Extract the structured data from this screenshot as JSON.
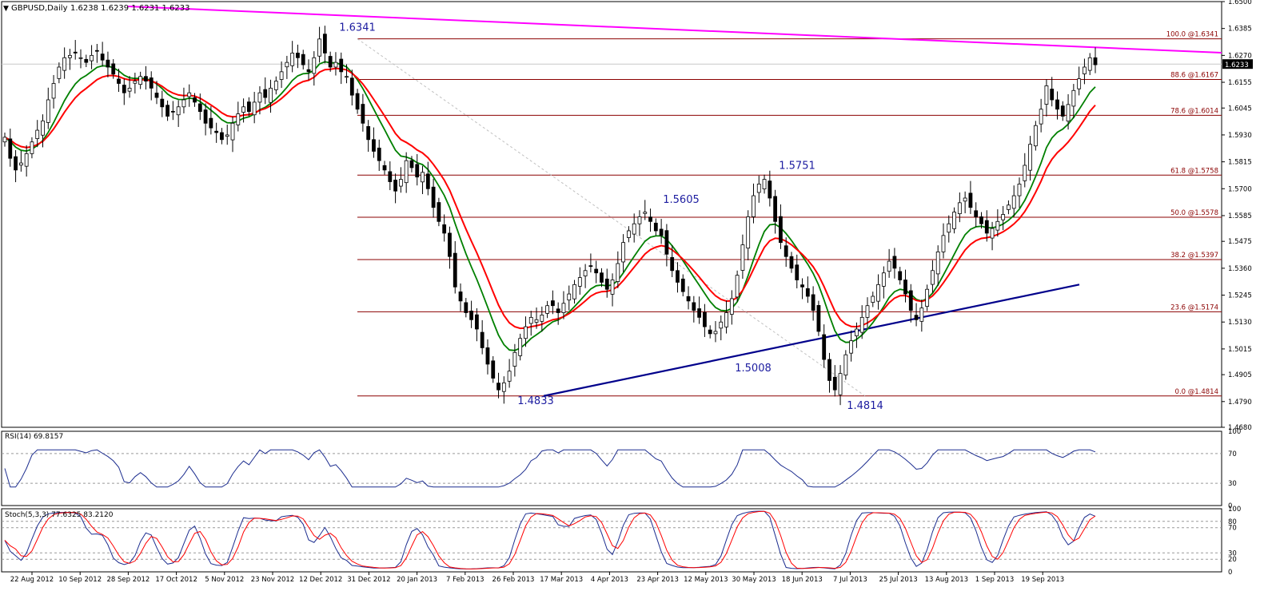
{
  "chart_data": {
    "type": "candlestick",
    "symbol": "GBPUSD,Daily",
    "ohlc_values": "1.6238 1.6239 1.6231 1.6233",
    "current_price": "1.6233",
    "price_axis": {
      "ylim": [
        1.468,
        1.65
      ],
      "ticks": [
        "1.6500",
        "1.6385",
        "1.6270",
        "1.6155",
        "1.6045",
        "1.5930",
        "1.5815",
        "1.5700",
        "1.5585",
        "1.5475",
        "1.5360",
        "1.5245",
        "1.5130",
        "1.5015",
        "1.4905",
        "1.4790",
        "1.4680"
      ]
    },
    "date_axis": [
      "22 Aug 2012",
      "10 Sep 2012",
      "28 Sep 2012",
      "17 Oct 2012",
      "5 Nov 2012",
      "23 Nov 2012",
      "12 Dec 2012",
      "31 Dec 2012",
      "20 Jan 2013",
      "7 Feb 2013",
      "26 Feb 2013",
      "17 Mar 2013",
      "4 Apr 2013",
      "23 Apr 2013",
      "12 May 2013",
      "30 May 2013",
      "18 Jun 2013",
      "7 Jul 2013",
      "25 Jul 2013",
      "13 Aug 2013",
      "1 Sep 2013",
      "19 Sep 2013"
    ],
    "fibonacci": [
      {
        "label": "100.0 @1.6341",
        "value": 1.6341
      },
      {
        "label": "88.6 @1.6167",
        "value": 1.6167
      },
      {
        "label": "78.6 @1.6014",
        "value": 1.6014
      },
      {
        "label": "61.8 @1.5758",
        "value": 1.5758
      },
      {
        "label": "50.0 @1.5578",
        "value": 1.5578
      },
      {
        "label": "38.2 @1.5397",
        "value": 1.5397
      },
      {
        "label": "23.6 @1.5174",
        "value": 1.5174
      },
      {
        "label": "0.0 @1.4814",
        "value": 1.4814
      }
    ],
    "annotations": [
      {
        "text": "1.6341",
        "date": "31 Dec 2012",
        "price": 1.6341
      },
      {
        "text": "1.5605",
        "date": "23 Apr 2013",
        "price": 1.5605
      },
      {
        "text": "1.5751",
        "date": "3 Jun 2013",
        "price": 1.5751
      },
      {
        "text": "1.5008",
        "date": "12 May 2013",
        "price": 1.5008
      },
      {
        "text": "1.4833",
        "date": "11 Mar 2013",
        "price": 1.4833
      },
      {
        "text": "1.4814",
        "date": "8 Jul 2013",
        "price": 1.4814
      }
    ],
    "closes": [
      1.592,
      1.583,
      1.578,
      1.581,
      1.585,
      1.59,
      1.595,
      1.599,
      1.608,
      1.615,
      1.622,
      1.626,
      1.627,
      1.628,
      1.626,
      1.624,
      1.627,
      1.629,
      1.625,
      1.622,
      1.619,
      1.615,
      1.611,
      1.613,
      1.616,
      1.618,
      1.616,
      1.613,
      1.609,
      1.605,
      1.601,
      1.603,
      1.605,
      1.608,
      1.611,
      1.607,
      1.603,
      1.598,
      1.596,
      1.594,
      1.591,
      1.593,
      1.598,
      1.602,
      1.605,
      1.603,
      1.607,
      1.611,
      1.609,
      1.613,
      1.616,
      1.62,
      1.624,
      1.628,
      1.626,
      1.623,
      1.62,
      1.626,
      1.634,
      1.628,
      1.622,
      1.624,
      1.62,
      1.618,
      1.61,
      1.604,
      1.598,
      1.591,
      1.586,
      1.582,
      1.578,
      1.573,
      1.569,
      1.574,
      1.582,
      1.579,
      1.575,
      1.577,
      1.57,
      1.562,
      1.556,
      1.551,
      1.541,
      1.528,
      1.522,
      1.517,
      1.514,
      1.51,
      1.502,
      1.495,
      1.489,
      1.484,
      1.487,
      1.492,
      1.5,
      1.506,
      1.511,
      1.515,
      1.514,
      1.516,
      1.52,
      1.52,
      1.517,
      1.521,
      1.525,
      1.529,
      1.532,
      1.535,
      1.537,
      1.534,
      1.53,
      1.527,
      1.531,
      1.538,
      1.547,
      1.552,
      1.555,
      1.558,
      1.56,
      1.556,
      1.552,
      1.55,
      1.542,
      1.535,
      1.53,
      1.526,
      1.522,
      1.518,
      1.515,
      1.511,
      1.508,
      1.509,
      1.513,
      1.517,
      1.523,
      1.533,
      1.546,
      1.558,
      1.567,
      1.572,
      1.574,
      1.566,
      1.556,
      1.547,
      1.541,
      1.536,
      1.531,
      1.528,
      1.524,
      1.518,
      1.509,
      1.497,
      1.488,
      1.484,
      1.491,
      1.499,
      1.505,
      1.51,
      1.515,
      1.52,
      1.524,
      1.529,
      1.534,
      1.539,
      1.536,
      1.531,
      1.525,
      1.518,
      1.514,
      1.519,
      1.527,
      1.535,
      1.543,
      1.55,
      1.555,
      1.56,
      1.564,
      1.566,
      1.562,
      1.558,
      1.555,
      1.551,
      1.553,
      1.556,
      1.559,
      1.563,
      1.567,
      1.572,
      1.58,
      1.589,
      1.597,
      1.604,
      1.614,
      1.608,
      1.604,
      1.601,
      1.606,
      1.612,
      1.617,
      1.622,
      1.626,
      1.623
    ],
    "rsi": {
      "label": "RSI(14) 69.8157",
      "levels": [
        30,
        70
      ],
      "ticks": [
        "100",
        "70",
        "30",
        "0"
      ]
    },
    "stochastic": {
      "label": "Stoch(5,3,3) 77.6325 83.2120",
      "levels": [
        20,
        30,
        70,
        80
      ],
      "ticks": [
        "100",
        "80",
        "70",
        "30",
        "20",
        "0"
      ]
    },
    "colors": {
      "bull": "#ffffff",
      "bear": "#000000",
      "fib": "#8b0000",
      "trend_upper": "#ff00ff",
      "trend_lower": "#00008b",
      "ma_fast": "#008000",
      "ma_slow": "#ff0000",
      "rsi": "#1c2d8f",
      "stoch_main": "#1c2d8f",
      "stoch_signal": "#ff0000",
      "annotation": "#1c1ca0"
    }
  }
}
